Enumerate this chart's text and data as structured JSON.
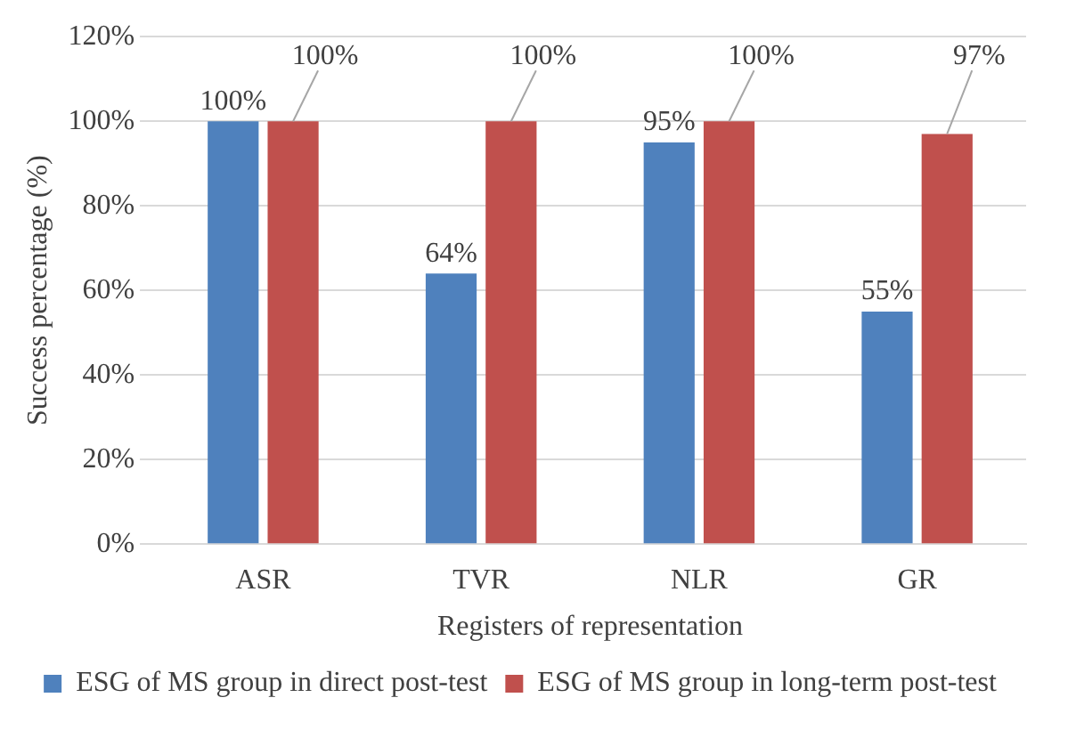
{
  "chart_data": {
    "type": "bar",
    "xlabel": "Registers of representation",
    "ylabel": "Success percentage (%)",
    "categories": [
      "ASR",
      "TVR",
      "NLR",
      "GR"
    ],
    "series": [
      {
        "name": "ESG of MS group in direct post-test",
        "color": "#4f81bd",
        "values": [
          100,
          64,
          95,
          55
        ],
        "value_labels": [
          "100%",
          "64%",
          "95%",
          "55%"
        ]
      },
      {
        "name": "ESG of MS group in long-term post-test",
        "color": "#c0504d",
        "values": [
          100,
          100,
          100,
          97
        ],
        "value_labels": [
          "100%",
          "100%",
          "100%",
          "97%"
        ]
      }
    ],
    "ylim": [
      0,
      120
    ],
    "yticks": [
      {
        "value": 0,
        "label": "0%"
      },
      {
        "value": 20,
        "label": "20%"
      },
      {
        "value": 40,
        "label": "40%"
      },
      {
        "value": 60,
        "label": "60%"
      },
      {
        "value": 80,
        "label": "80%"
      },
      {
        "value": 100,
        "label": "100%"
      },
      {
        "value": 120,
        "label": "120%"
      }
    ],
    "grid": "y",
    "legend": "bottom"
  }
}
